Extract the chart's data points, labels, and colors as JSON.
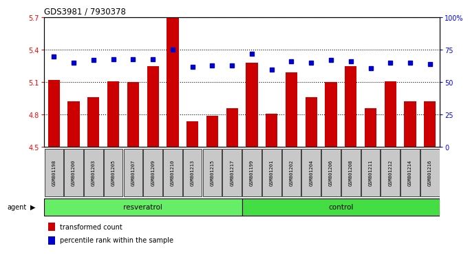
{
  "title": "GDS3981 / 7930378",
  "samples": [
    "GSM801198",
    "GSM801200",
    "GSM801203",
    "GSM801205",
    "GSM801207",
    "GSM801209",
    "GSM801210",
    "GSM801213",
    "GSM801215",
    "GSM801217",
    "GSM801199",
    "GSM801201",
    "GSM801202",
    "GSM801204",
    "GSM801206",
    "GSM801208",
    "GSM801211",
    "GSM801212",
    "GSM801214",
    "GSM801216"
  ],
  "bar_values": [
    5.12,
    4.92,
    4.96,
    5.11,
    5.1,
    5.25,
    5.7,
    4.74,
    4.79,
    4.86,
    5.28,
    4.81,
    5.19,
    4.96,
    5.1,
    5.25,
    4.86,
    5.11,
    4.92,
    4.92
  ],
  "percentile_values": [
    70,
    65,
    67,
    68,
    68,
    68,
    75,
    62,
    63,
    63,
    72,
    60,
    66,
    65,
    67,
    66,
    61,
    65,
    65,
    64
  ],
  "resveratrol_count": 10,
  "control_count": 10,
  "ylim_left": [
    4.5,
    5.7
  ],
  "ylim_right": [
    0,
    100
  ],
  "yticks_left": [
    4.5,
    4.8,
    5.1,
    5.4,
    5.7
  ],
  "yticks_right": [
    0,
    25,
    50,
    75,
    100
  ],
  "ytick_labels_right": [
    "0",
    "25",
    "50",
    "75",
    "100%"
  ],
  "bar_color": "#cc0000",
  "dot_color": "#0000cc",
  "resveratrol_color": "#66ee66",
  "control_color": "#44dd44",
  "tick_bg_color": "#c8c8c8",
  "legend_bar_label": "transformed count",
  "legend_dot_label": "percentile rank within the sample",
  "resveratrol_label": "resveratrol",
  "control_label": "control",
  "agent_label": "agent"
}
